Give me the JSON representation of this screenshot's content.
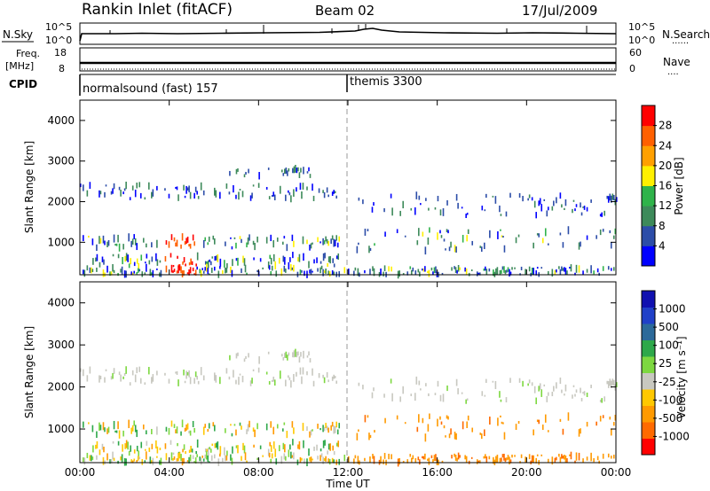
{
  "header": {
    "station": "Rankin Inlet (fitACF)",
    "beam": "Beam 02",
    "date": "17/Jul/2009"
  },
  "side_labels": {
    "nsky": "N.Sky",
    "nsearch": "N.Search",
    "freq_line1": "Freq.",
    "freq_line2": "[MHz]",
    "cpid": "CPID",
    "nave": "Nave",
    "dots": "......",
    "dots_short": "...."
  },
  "cpid_labels": {
    "first": "normalsound (fast) 157",
    "second": "themis 3300"
  },
  "colors": {
    "power": [
      "#0000ff",
      "#2c4da8",
      "#3d8a5a",
      "#2fb34a",
      "#fff000",
      "#ffa000",
      "#ff6000",
      "#ff0000"
    ],
    "velocity": [
      "#ff0000",
      "#ff6a00",
      "#ff9a00",
      "#ffc800",
      "#c8c8c0",
      "#7dd840",
      "#2ea84a",
      "#2c6a9a",
      "#2040c8",
      "#1010b0"
    ]
  },
  "chart_data": [
    {
      "type": "line",
      "name": "sky-search-noise",
      "y_ticks_left": [
        "10^5",
        "10^0"
      ],
      "y_ticks_right": [
        "10^5",
        "10^0"
      ]
    },
    {
      "type": "line",
      "name": "frequency-nave",
      "y_ticks_left": [
        "18",
        "8"
      ],
      "y_ticks_right": [
        "60",
        "0"
      ]
    },
    {
      "type": "heatmap",
      "name": "power",
      "ylabel": "Slant Range [km]",
      "ylim": [
        200,
        4500
      ],
      "y_ticks": [
        "1000",
        "2000",
        "3000",
        "4000"
      ],
      "colorbar": {
        "label": "Power [dB]",
        "ticks": [
          "28",
          "24",
          "20",
          "16",
          "12",
          "8",
          "4"
        ]
      }
    },
    {
      "type": "heatmap",
      "name": "velocity",
      "ylabel": "Slant Range [km]",
      "ylim": [
        200,
        4500
      ],
      "y_ticks": [
        "1000",
        "2000",
        "3000",
        "4000"
      ],
      "colorbar": {
        "label": "Velocity  [m s⁻¹]",
        "ticks": [
          "1000",
          "500",
          "100",
          "25",
          "-25",
          "-100",
          "-500",
          "-1000"
        ]
      }
    }
  ],
  "x_axis": {
    "label": "Time UT",
    "ticks": [
      "00:00",
      "04:00",
      "08:00",
      "12:00",
      "16:00",
      "20:00",
      "00:00"
    ]
  }
}
